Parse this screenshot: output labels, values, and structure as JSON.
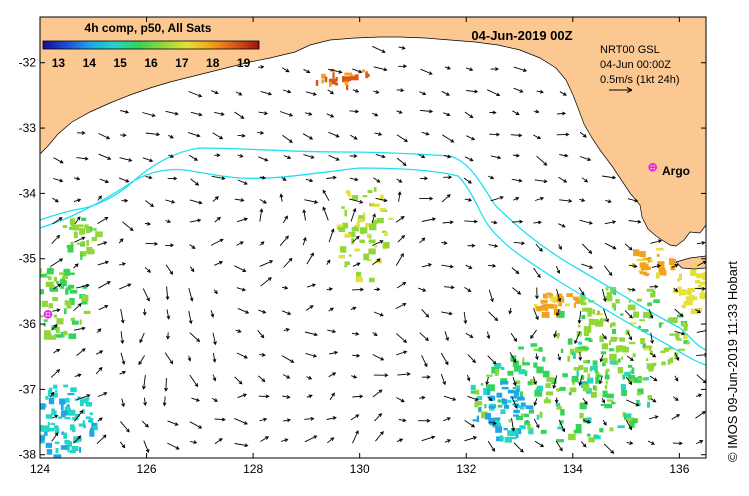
{
  "header": {
    "composite_label": "4h comp, p50, All Sats",
    "date_title": "04-Jun-2019 00Z"
  },
  "colorbar": {
    "tick_labels": [
      "13",
      "14",
      "15",
      "16",
      "17",
      "18",
      "19"
    ],
    "min": 12.5,
    "max": 19.5,
    "colors": [
      "#10109a",
      "#1e4fd8",
      "#1ea6e6",
      "#22d6c8",
      "#35d35a",
      "#90d83a",
      "#e6e13a",
      "#f2a21e",
      "#d8581a",
      "#a11010"
    ]
  },
  "current_legend": {
    "product": "NRT00 GSL",
    "time": "04-Jun 00:00Z",
    "scale": "0.5m/s (1kt 24h)"
  },
  "argo": {
    "label": "Argo",
    "color": "#e020e0",
    "floats": [
      {
        "lon": 135.5,
        "lat": -33.6,
        "labelled": true
      },
      {
        "lon": 124.15,
        "lat": -35.85,
        "labelled": false
      }
    ]
  },
  "axes": {
    "lon_range": [
      124,
      136.5
    ],
    "lat_range": [
      -38.05,
      -31.3
    ],
    "x_ticks": [
      124,
      126,
      128,
      130,
      132,
      134,
      136
    ],
    "y_ticks": [
      -32,
      -33,
      -34,
      -35,
      -36,
      -37,
      -38
    ],
    "x_tick_labels": [
      "124",
      "126",
      "128",
      "130",
      "132",
      "134",
      "136"
    ],
    "y_tick_labels": [
      "-32",
      "-33",
      "-34",
      "-35",
      "-36",
      "-37",
      "-38"
    ]
  },
  "colors": {
    "land": "#fbc892",
    "contour": "#20e0f0",
    "arrow": "#000000"
  },
  "credit": "© IMOS 09-Jun-2019 11:33 Hobart"
}
